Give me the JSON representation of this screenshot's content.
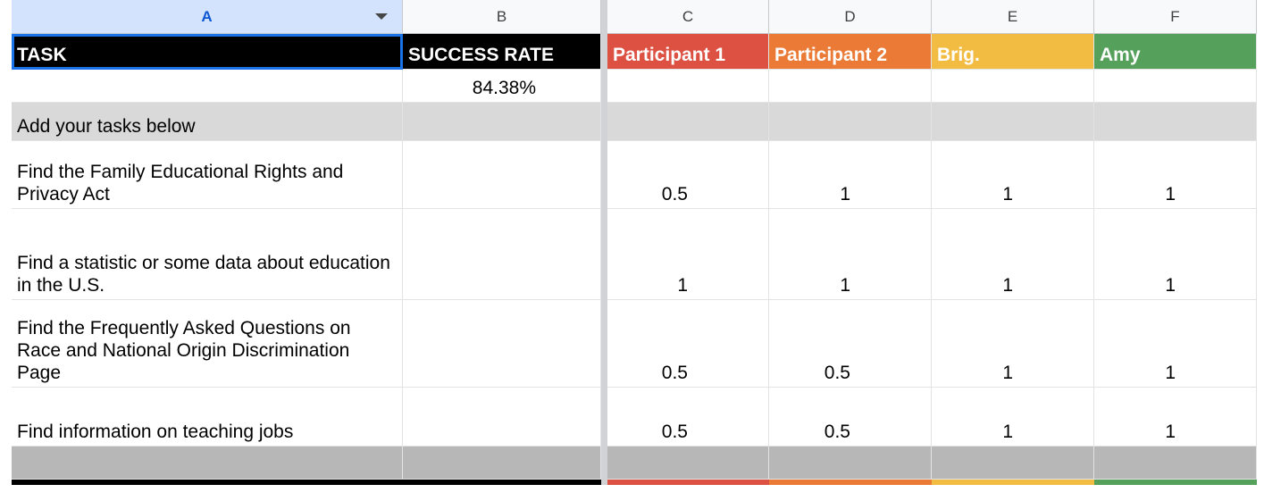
{
  "columns": {
    "A": "A",
    "B": "B",
    "C": "C",
    "D": "D",
    "E": "E",
    "F": "F"
  },
  "header": {
    "task": "TASK",
    "success_rate": "SUCCESS RATE",
    "p1": "Participant 1",
    "p2": "Participant 2",
    "p3": "Brig.",
    "p4": "Amy"
  },
  "summary": {
    "success_rate_value": "84.38%"
  },
  "section_label": "Add your tasks below",
  "tasks": [
    {
      "name": "Find the Family Educational Rights and Privacy Act",
      "p1": "0.5",
      "p2": "1",
      "p3": "1",
      "p4": "1"
    },
    {
      "name": "Find a statistic or some data about education in the U.S.",
      "p1": "1",
      "p2": "1",
      "p3": "1",
      "p4": "1"
    },
    {
      "name": "Find the Frequently Asked Questions on Race and National Origin Discrimination Page",
      "p1": "0.5",
      "p2": "0.5",
      "p3": "1",
      "p4": "1"
    },
    {
      "name": "Find information on teaching jobs",
      "p1": "0.5",
      "p2": "0.5",
      "p3": "1",
      "p4": "1"
    }
  ],
  "colors": {
    "header_black": "#000000",
    "participant1": "#dd5143",
    "participant2": "#ea7a35",
    "participant3": "#f2bb42",
    "participant4": "#55a05b",
    "selection": "#1a73e8",
    "section_fill": "#d9d9d9",
    "footer_fill": "#b7b7b7"
  },
  "icons": {
    "column_dropdown": "dropdown-triangle-icon"
  }
}
